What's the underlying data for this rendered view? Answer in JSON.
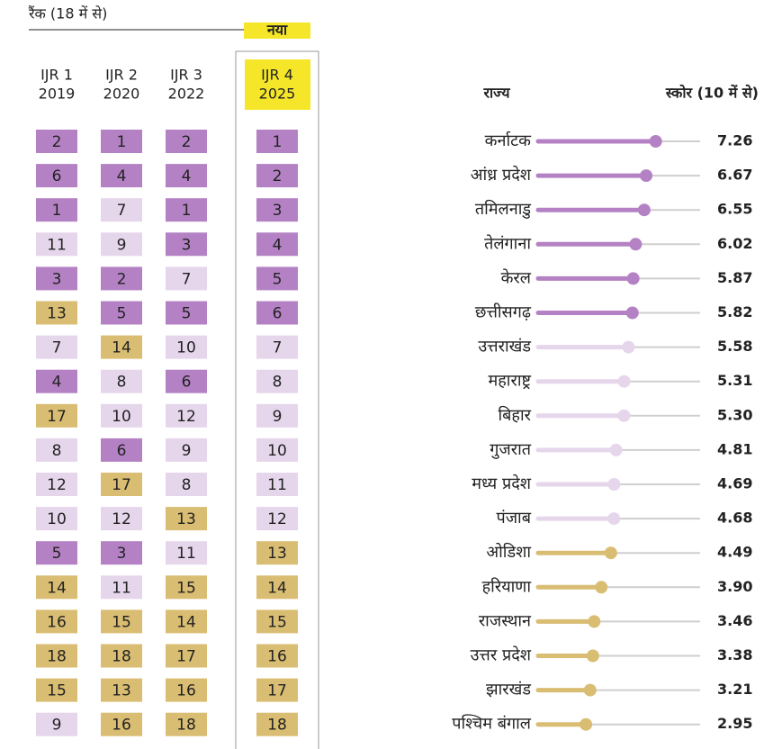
{
  "rank_table": {
    "title": "रैंक (18 में से)",
    "new_label": "नया",
    "columns": [
      {
        "name": "IJR 1",
        "year": "2019"
      },
      {
        "name": "IJR 2",
        "year": "2020"
      },
      {
        "name": "IJR 3",
        "year": "2022"
      },
      {
        "name": "IJR 4",
        "year": "2025"
      }
    ],
    "rows": [
      [
        2,
        1,
        2,
        1
      ],
      [
        6,
        4,
        4,
        2
      ],
      [
        1,
        7,
        1,
        3
      ],
      [
        11,
        9,
        3,
        4
      ],
      [
        3,
        2,
        7,
        5
      ],
      [
        13,
        5,
        5,
        6
      ],
      [
        7,
        14,
        10,
        7
      ],
      [
        4,
        8,
        6,
        8
      ],
      [
        17,
        10,
        12,
        9
      ],
      [
        8,
        6,
        9,
        10
      ],
      [
        12,
        17,
        8,
        11
      ],
      [
        10,
        12,
        13,
        12
      ],
      [
        5,
        3,
        11,
        13
      ],
      [
        14,
        11,
        15,
        14
      ],
      [
        16,
        15,
        14,
        15
      ],
      [
        18,
        18,
        17,
        16
      ],
      [
        15,
        13,
        16,
        17
      ],
      [
        9,
        16,
        18,
        18
      ]
    ]
  },
  "chart_data": {
    "type": "lollipop",
    "category_label": "राज्य",
    "value_label": "स्कोर (10 में से)",
    "categories": [
      "कर्नाटक",
      "आंध्र प्रदेश",
      "तमिलनाडु",
      "तेलंगाना",
      "केरल",
      "छत्तीसगढ़",
      "उत्तराखंड",
      "महाराष्ट्र",
      "बिहार",
      "गुजरात",
      "मध्य प्रदेश",
      "पंजाब",
      "ओडिशा",
      "हरियाणा",
      "राजस्थान",
      "उत्तर प्रदेश",
      "झारखंड",
      "पश्चिम बंगाल"
    ],
    "values": [
      7.26,
      6.67,
      6.55,
      6.02,
      5.87,
      5.82,
      5.58,
      5.31,
      5.3,
      4.81,
      4.69,
      4.68,
      4.49,
      3.9,
      3.46,
      3.38,
      3.21,
      2.95
    ],
    "value_labels": [
      "7.26",
      "6.67",
      "6.55",
      "6.02",
      "5.87",
      "5.82",
      "5.58",
      "5.31",
      "5.30",
      "4.81",
      "4.69",
      "4.68",
      "4.49",
      "3.90",
      "3.46",
      "3.38",
      "3.21",
      "2.95"
    ],
    "colors": [
      "#b482c4",
      "#b482c4",
      "#b482c4",
      "#b482c4",
      "#b482c4",
      "#b482c4",
      "#e6d6ec",
      "#e6d6ec",
      "#e6d6ec",
      "#e6d6ec",
      "#e6d6ec",
      "#e6d6ec",
      "#d9bd72",
      "#d9bd72",
      "#d9bd72",
      "#d9bd72",
      "#d9bd72",
      "#d9bd72"
    ],
    "track_color": "#cfcfcf",
    "xlim": [
      0,
      10
    ]
  }
}
